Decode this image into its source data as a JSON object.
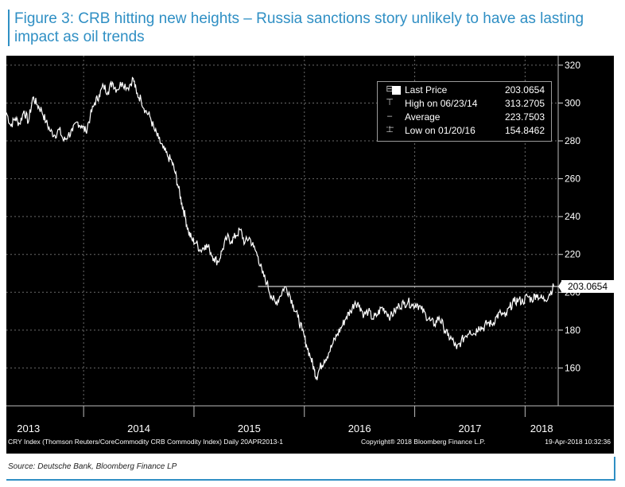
{
  "figure_title": "Figure 3: CRB hitting new heights – Russia sanctions story unlikely to have as lasting impact as oil trends",
  "source": "Source: Deutsche Bank, Bloomberg Finance LP",
  "footer": {
    "left": "CRY Index (Thomson Reuters/CoreCommodity CRB Commodity Index) Daily 20APR2013-1",
    "copyright": "Copyright® 2018 Bloomberg Finance L.P.",
    "timestamp": "19-Apr-2018 10:32:36"
  },
  "legend": {
    "last_price_label": "Last Price",
    "last_price_value": "203.0654",
    "high_label": "High on 06/23/14",
    "high_value": "313.2705",
    "average_label": "Average",
    "average_value": "223.7503",
    "low_label": "Low on 01/20/16",
    "low_value": "154.8462"
  },
  "colors": {
    "title": "#2f8fc4",
    "background": "#000000",
    "line": "#ffffff",
    "grid": "#6a6a6a"
  },
  "chart_data": {
    "type": "line",
    "x_unit": "year (decimal)",
    "xlim": [
      2013.3,
      2018.3
    ],
    "ylim": [
      140,
      325
    ],
    "y_ticks": [
      160,
      180,
      200,
      220,
      240,
      260,
      280,
      300,
      320
    ],
    "x_ticks": [
      {
        "value": 2013.5,
        "label": "2013"
      },
      {
        "value": 2014.5,
        "label": "2014"
      },
      {
        "value": 2015.5,
        "label": "2015"
      },
      {
        "value": 2016.5,
        "label": "2016"
      },
      {
        "value": 2017.5,
        "label": "2017"
      },
      {
        "value": 2018.15,
        "label": "2018"
      }
    ],
    "year_separators": [
      2014.0,
      2015.0,
      2016.0,
      2017.0,
      2018.0
    ],
    "last_price_label": "203.0654",
    "last_price_value": 203.0654,
    "reference_line": {
      "y": 203.0654,
      "x_start": 2015.58,
      "x_end": 2018.3
    },
    "grid": true,
    "series": [
      {
        "points": [
          [
            2013.3,
            295
          ],
          [
            2013.34,
            288
          ],
          [
            2013.38,
            292
          ],
          [
            2013.42,
            289
          ],
          [
            2013.46,
            296
          ],
          [
            2013.5,
            290
          ],
          [
            2013.54,
            303
          ],
          [
            2013.58,
            299
          ],
          [
            2013.62,
            296
          ],
          [
            2013.66,
            290
          ],
          [
            2013.7,
            285
          ],
          [
            2013.74,
            283
          ],
          [
            2013.78,
            286
          ],
          [
            2013.82,
            280
          ],
          [
            2013.86,
            283
          ],
          [
            2013.9,
            285
          ],
          [
            2013.94,
            290
          ],
          [
            2013.98,
            288
          ],
          [
            2014.02,
            285
          ],
          [
            2014.06,
            293
          ],
          [
            2014.1,
            300
          ],
          [
            2014.14,
            304
          ],
          [
            2014.18,
            309
          ],
          [
            2014.22,
            306
          ],
          [
            2014.26,
            311
          ],
          [
            2014.3,
            307
          ],
          [
            2014.35,
            311
          ],
          [
            2014.4,
            308
          ],
          [
            2014.45,
            313
          ],
          [
            2014.48,
            305
          ],
          [
            2014.52,
            302
          ],
          [
            2014.56,
            296
          ],
          [
            2014.6,
            293
          ],
          [
            2014.64,
            286
          ],
          [
            2014.68,
            281
          ],
          [
            2014.72,
            276
          ],
          [
            2014.76,
            272
          ],
          [
            2014.8,
            269
          ],
          [
            2014.83,
            263
          ],
          [
            2014.86,
            255
          ],
          [
            2014.89,
            247
          ],
          [
            2014.92,
            240
          ],
          [
            2014.95,
            232
          ],
          [
            2014.98,
            228
          ],
          [
            2015.02,
            226
          ],
          [
            2015.06,
            222
          ],
          [
            2015.1,
            225
          ],
          [
            2015.14,
            223
          ],
          [
            2015.18,
            218
          ],
          [
            2015.22,
            216
          ],
          [
            2015.26,
            223
          ],
          [
            2015.3,
            229
          ],
          [
            2015.34,
            227
          ],
          [
            2015.38,
            230
          ],
          [
            2015.42,
            233
          ],
          [
            2015.46,
            226
          ],
          [
            2015.5,
            229
          ],
          [
            2015.54,
            224
          ],
          [
            2015.58,
            219
          ],
          [
            2015.62,
            210
          ],
          [
            2015.66,
            205
          ],
          [
            2015.7,
            198
          ],
          [
            2015.74,
            194
          ],
          [
            2015.78,
            198
          ],
          [
            2015.82,
            203
          ],
          [
            2015.86,
            200
          ],
          [
            2015.9,
            193
          ],
          [
            2015.94,
            187
          ],
          [
            2015.98,
            180
          ],
          [
            2016.02,
            172
          ],
          [
            2016.06,
            165
          ],
          [
            2016.09,
            159
          ],
          [
            2016.11,
            155
          ],
          [
            2016.14,
            160
          ],
          [
            2016.18,
            164
          ],
          [
            2016.22,
            168
          ],
          [
            2016.26,
            173
          ],
          [
            2016.3,
            178
          ],
          [
            2016.34,
            182
          ],
          [
            2016.38,
            187
          ],
          [
            2016.42,
            190
          ],
          [
            2016.46,
            195
          ],
          [
            2016.5,
            193
          ],
          [
            2016.54,
            188
          ],
          [
            2016.58,
            190
          ],
          [
            2016.62,
            186
          ],
          [
            2016.66,
            188
          ],
          [
            2016.7,
            192
          ],
          [
            2016.74,
            190
          ],
          [
            2016.78,
            187
          ],
          [
            2016.82,
            190
          ],
          [
            2016.86,
            193
          ],
          [
            2016.9,
            194
          ],
          [
            2016.94,
            195
          ],
          [
            2016.98,
            193
          ],
          [
            2017.02,
            194
          ],
          [
            2017.06,
            191
          ],
          [
            2017.1,
            188
          ],
          [
            2017.14,
            185
          ],
          [
            2017.18,
            183
          ],
          [
            2017.22,
            187
          ],
          [
            2017.26,
            182
          ],
          [
            2017.3,
            177
          ],
          [
            2017.34,
            175
          ],
          [
            2017.38,
            170
          ],
          [
            2017.42,
            174
          ],
          [
            2017.46,
            177
          ],
          [
            2017.5,
            180
          ],
          [
            2017.54,
            178
          ],
          [
            2017.58,
            182
          ],
          [
            2017.62,
            181
          ],
          [
            2017.66,
            184
          ],
          [
            2017.7,
            183
          ],
          [
            2017.74,
            187
          ],
          [
            2017.78,
            189
          ],
          [
            2017.82,
            187
          ],
          [
            2017.86,
            192
          ],
          [
            2017.9,
            195
          ],
          [
            2017.94,
            196
          ],
          [
            2017.98,
            195
          ],
          [
            2018.02,
            198
          ],
          [
            2018.06,
            196
          ],
          [
            2018.1,
            199
          ],
          [
            2018.14,
            197
          ],
          [
            2018.18,
            196
          ],
          [
            2018.22,
            199
          ],
          [
            2018.26,
            203.07
          ]
        ]
      }
    ]
  }
}
